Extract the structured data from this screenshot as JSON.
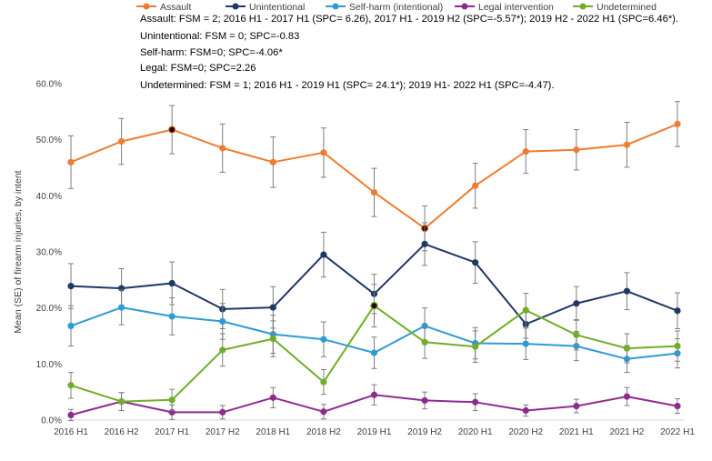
{
  "chart_data": {
    "type": "line",
    "title": "",
    "xlabel": "",
    "ylabel": "Mean (SE) of firearm injuries, by intent",
    "ylim": [
      0,
      60
    ],
    "yticks": [
      "0.0%",
      "10.0%",
      "20.0%",
      "30.0%",
      "40.0%",
      "50.0%",
      "60.0%"
    ],
    "ytick_values": [
      0,
      10,
      20,
      30,
      40,
      50,
      60
    ],
    "grid": false,
    "legend_position": "top-left",
    "categories": [
      "2016 H1",
      "2016 H2",
      "2017 H1",
      "2017 H2",
      "2018 H1",
      "2018 H2",
      "2019 H1",
      "2019 H2",
      "2020 H1",
      "2020 H2",
      "2021 H1",
      "2021 H2",
      "2022 H1"
    ],
    "series": [
      {
        "name": "Assault",
        "color": "#ED7D31",
        "values": [
          46.0,
          49.7,
          51.8,
          48.5,
          46.0,
          47.7,
          40.6,
          34.2,
          41.8,
          47.9,
          48.2,
          49.1,
          52.8
        ],
        "errors": [
          4.7,
          4.1,
          4.3,
          4.3,
          4.5,
          4.4,
          4.3,
          4.0,
          4.0,
          3.9,
          3.6,
          4.0,
          4.0
        ],
        "highlight_points": [
          2,
          7
        ]
      },
      {
        "name": "Unintentional",
        "color": "#1F3864",
        "values": [
          23.9,
          23.5,
          24.4,
          19.8,
          20.1,
          29.5,
          22.5,
          31.4,
          28.1,
          17.1,
          20.8,
          23.0,
          19.5
        ],
        "errors": [
          4.0,
          3.5,
          3.8,
          3.5,
          3.7,
          4.0,
          3.5,
          3.8,
          3.7,
          2.5,
          3.0,
          3.3,
          3.2
        ],
        "highlight_points": []
      },
      {
        "name": "Self-harm (intentional)",
        "color": "#2E9BD6",
        "values": [
          16.8,
          20.1,
          18.5,
          17.6,
          15.3,
          14.4,
          12.0,
          16.8,
          13.7,
          13.6,
          13.2,
          10.9,
          11.9
        ],
        "errors": [
          3.6,
          3.1,
          3.3,
          3.2,
          3.4,
          3.1,
          2.8,
          3.2,
          2.8,
          2.8,
          2.6,
          2.4,
          2.6
        ],
        "highlight_points": []
      },
      {
        "name": "Legal intervention",
        "color": "#8E2C8E",
        "values": [
          0.9,
          3.3,
          1.4,
          1.4,
          4.0,
          1.5,
          4.5,
          3.5,
          3.2,
          1.7,
          2.5,
          4.2,
          2.5
        ],
        "errors": [
          1.0,
          1.6,
          1.3,
          1.2,
          1.8,
          1.3,
          1.8,
          1.5,
          1.5,
          1.0,
          1.2,
          1.6,
          1.3
        ],
        "highlight_points": []
      },
      {
        "name": "Undetermined",
        "color": "#70AD2A",
        "values": [
          6.2,
          3.3,
          3.6,
          12.5,
          14.5,
          6.8,
          20.4,
          13.9,
          13.1,
          19.6,
          15.2,
          12.8,
          13.2
        ],
        "errors": [
          2.3,
          1.6,
          1.9,
          2.9,
          3.2,
          2.2,
          3.8,
          2.9,
          2.8,
          3.0,
          2.7,
          2.6,
          2.7
        ],
        "highlight_points": [
          6
        ]
      }
    ],
    "annotations": [
      "Assault: FSM = 2; 2016 H1 - 2017 H1 (SPC= 6.26), 2017 H1 - 2019 H2 (SPC=-5.57*); 2019 H2 - 2022 H1 (SPC=6.46*).",
      "Unintentional: FSM = 0; SPC=-0.83",
      "Self-harm: FSM=0; SPC=-4.06*",
      "Legal: FSM=0; SPC=2.26",
      "Undetermined: FSM = 1; 2016 H1 - 2019 H1 (SPC= 24.1*); 2019 H1- 2022 H1 (SPC=-4.47)."
    ],
    "highlight_color": "#2b0606"
  }
}
